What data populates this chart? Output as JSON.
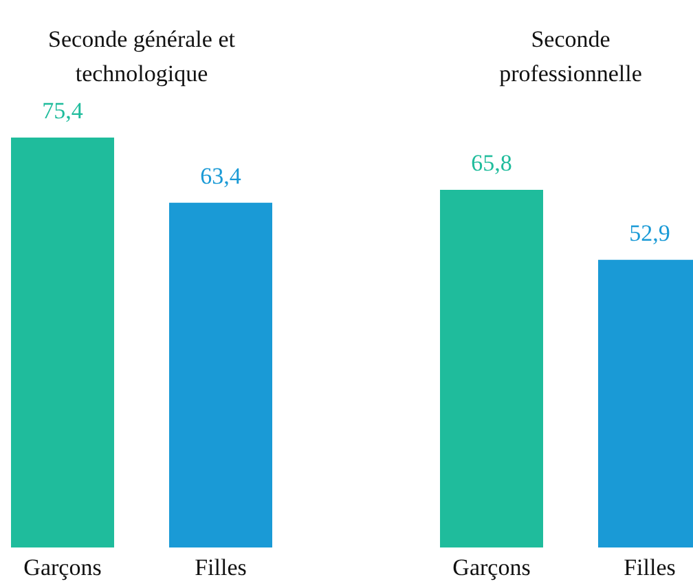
{
  "chart_data": [
    {
      "type": "bar",
      "title": "Seconde générale et technologique",
      "categories": [
        "Garçons",
        "Filles"
      ],
      "values": [
        75.4,
        63.4
      ],
      "colors": [
        "#1fbc9c",
        "#1a9ad6"
      ],
      "value_labels": [
        "75,4",
        "63,4"
      ],
      "tick_labels": "x"
    },
    {
      "type": "bar",
      "title": "Seconde professionnelle",
      "categories": [
        "Garçons",
        "Filles"
      ],
      "values": [
        65.8,
        52.9
      ],
      "colors": [
        "#1fbc9c",
        "#1a9ad6"
      ],
      "value_labels": [
        "65,8",
        "52,9"
      ],
      "tick_labels": "x"
    }
  ]
}
